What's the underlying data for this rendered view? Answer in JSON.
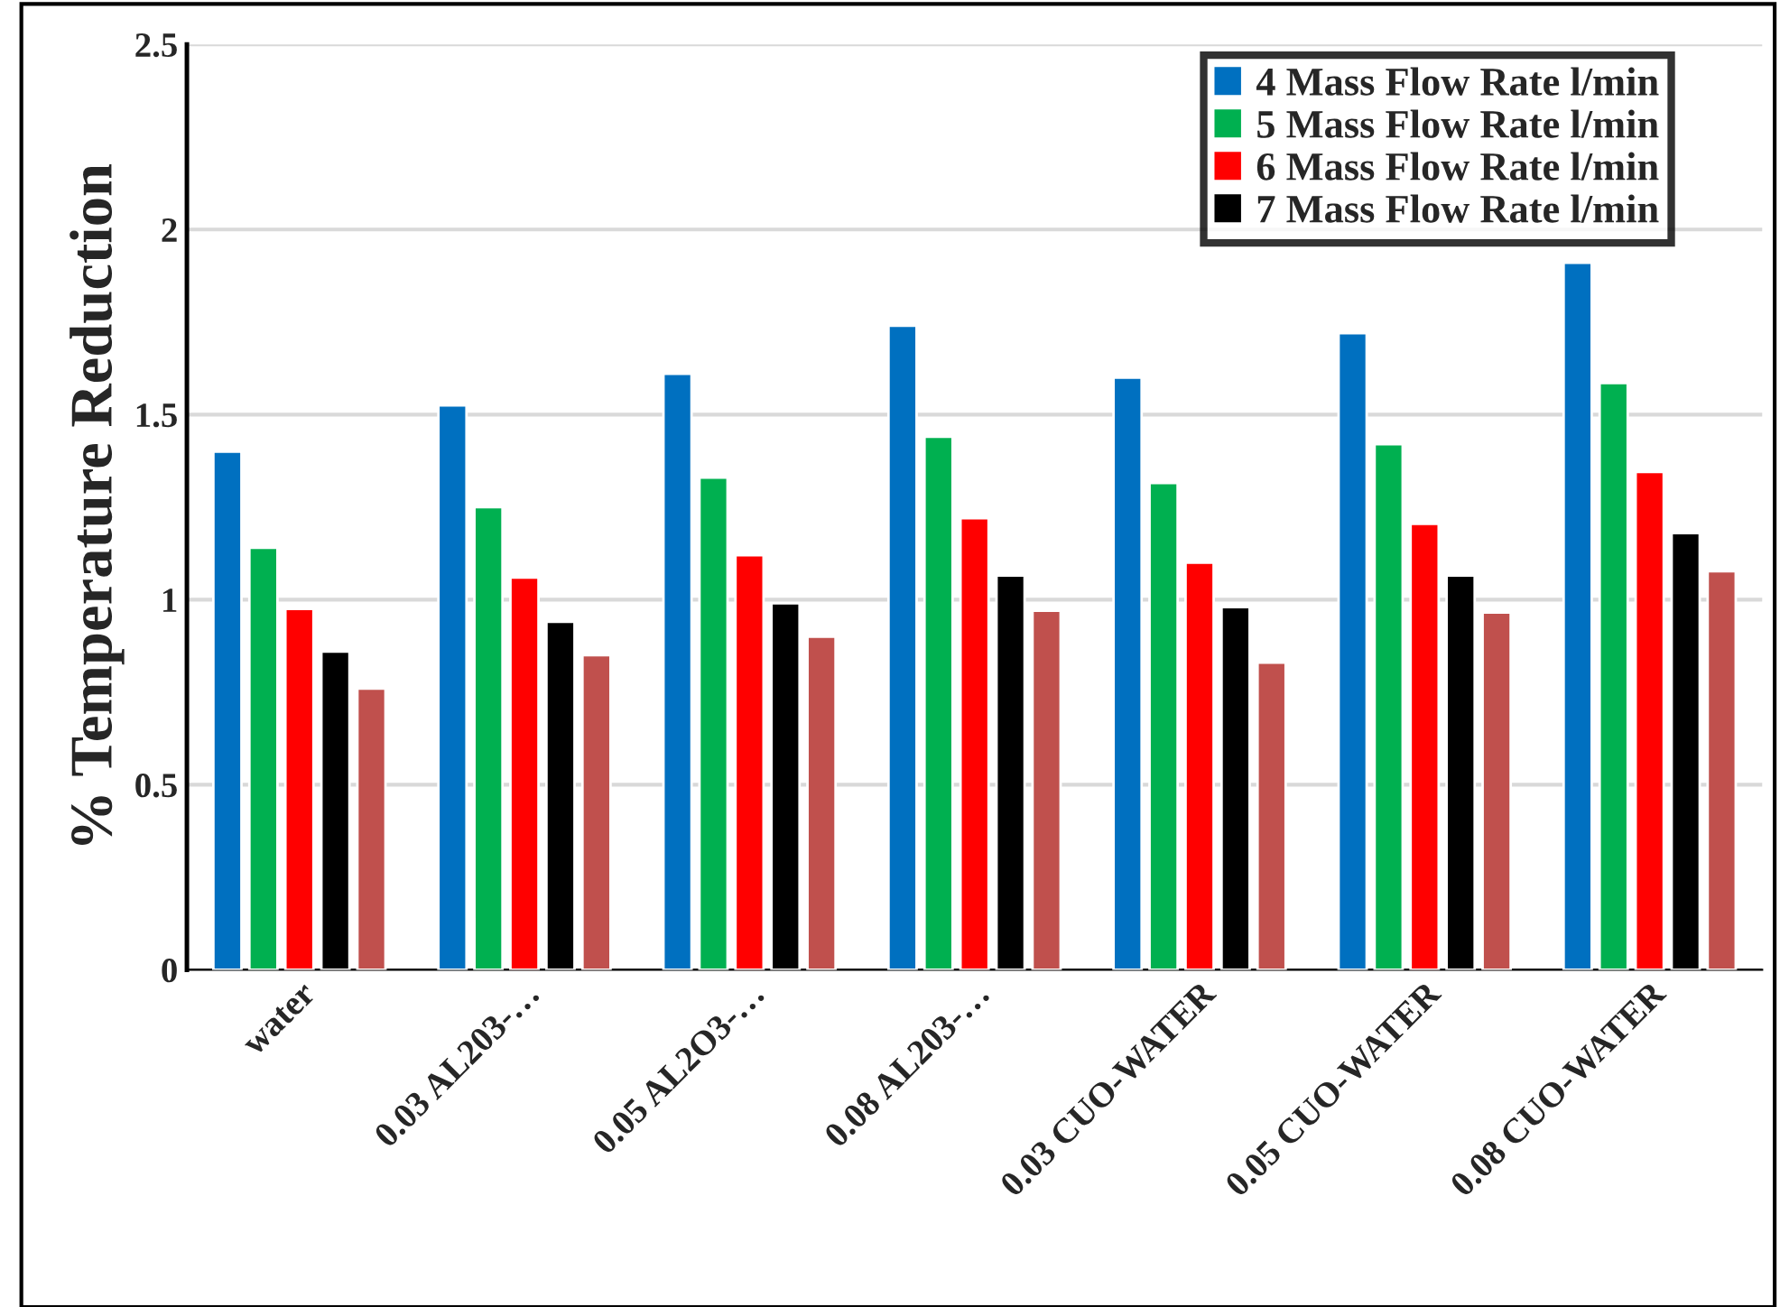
{
  "chart_data": {
    "type": "bar",
    "ylabel": "% Temperature Reduction",
    "categories": [
      "water",
      "0.03 AL203-…",
      "0.05 AL2O3-…",
      "0.08 AL203-…",
      "0.03 CUO-WATER",
      "0.05 CUO-WATER",
      "0.08 CUO-WATER"
    ],
    "series": [
      {
        "name": "4 Mass Flow Rate l/min",
        "color": "#0070c0",
        "values": [
          1.4,
          1.525,
          1.61,
          1.74,
          1.6,
          1.72,
          1.91
        ]
      },
      {
        "name": "5 Mass Flow Rate l/min",
        "color": "#00b050",
        "values": [
          1.14,
          1.25,
          1.33,
          1.44,
          1.315,
          1.42,
          1.585
        ]
      },
      {
        "name": "6 Mass Flow Rate l/min",
        "color": "#ff0000",
        "values": [
          0.975,
          1.06,
          1.12,
          1.22,
          1.1,
          1.205,
          1.345
        ]
      },
      {
        "name": "7 Mass Flow Rate l/min",
        "color": "#000000",
        "values": [
          0.86,
          0.94,
          0.99,
          1.065,
          0.98,
          1.065,
          1.18
        ]
      },
      {
        "color": "#c0504d",
        "values": [
          0.76,
          0.85,
          0.9,
          0.97,
          0.83,
          0.965,
          1.077
        ]
      }
    ],
    "ylim": [
      0,
      2.5
    ],
    "yticks": [
      0,
      0.5,
      1,
      1.5,
      2,
      2.5
    ],
    "grid": "y",
    "legend": "top right"
  }
}
